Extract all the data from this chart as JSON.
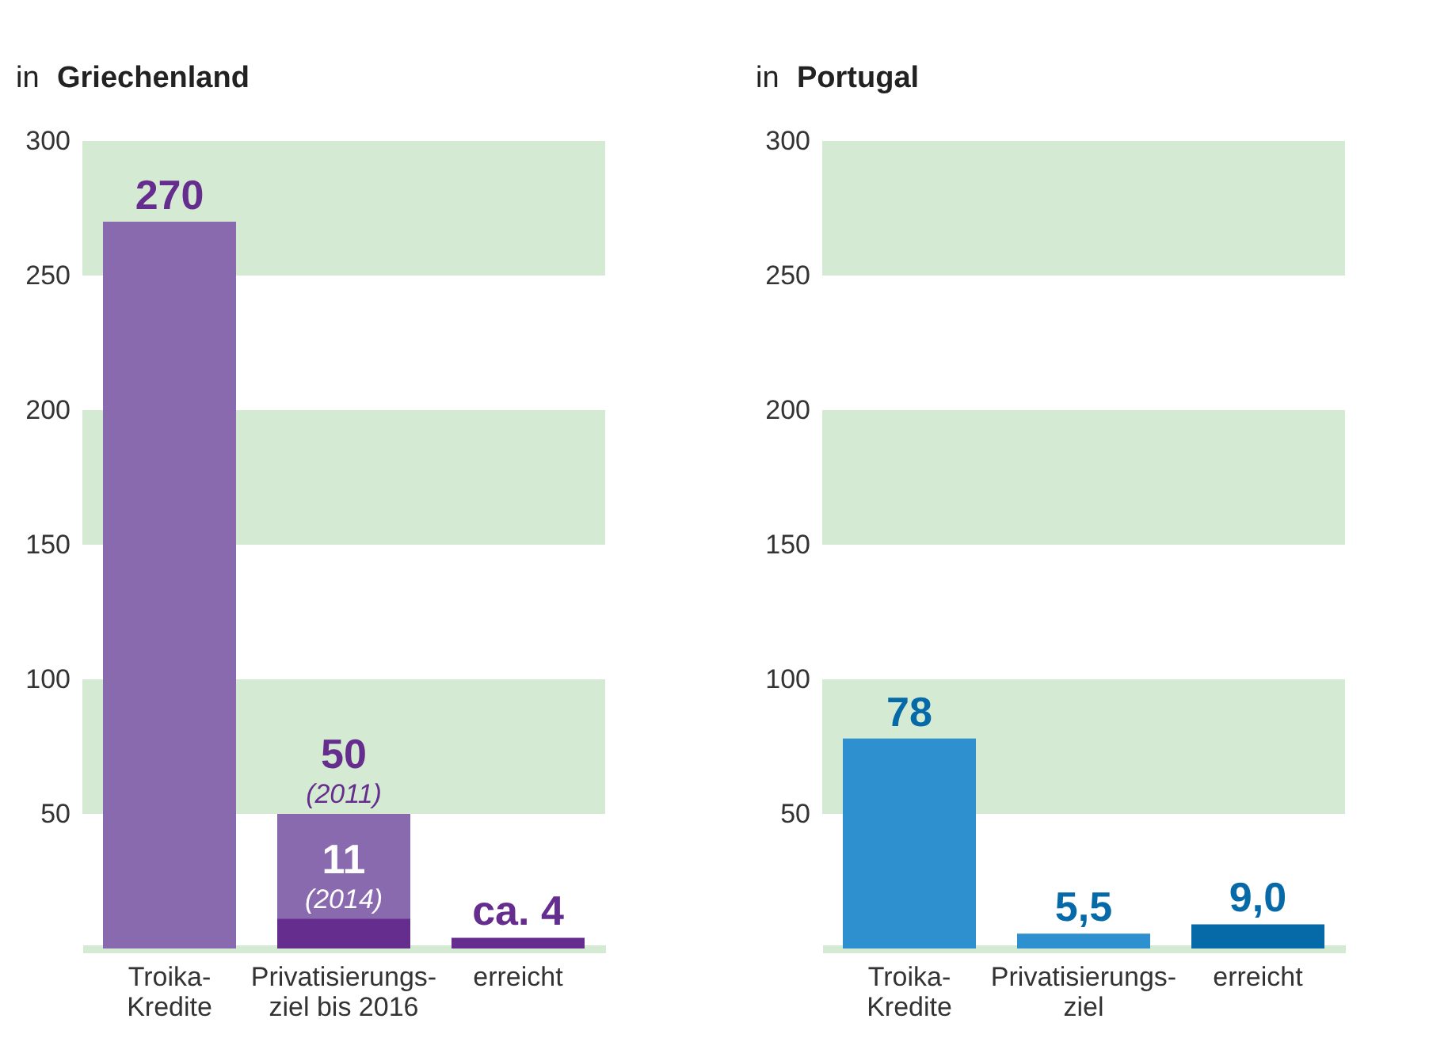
{
  "chart_data": [
    {
      "type": "bar",
      "title": "in Griechenland",
      "categories": [
        "Troika-\nKredite",
        "Privatisierungs-\nziel bis 2016",
        "erreicht"
      ],
      "series": [
        {
          "color": "#8a6aae",
          "values": [
            270,
            50,
            null
          ],
          "value_labels": [
            "270",
            "50\n(2011)",
            null
          ]
        },
        {
          "color": "#652d8e",
          "values": [
            null,
            11,
            4
          ],
          "value_labels": [
            null,
            "11\n(2014)",
            "ca. 4"
          ]
        }
      ],
      "ylim": [
        0,
        300
      ],
      "yticks": [
        50,
        100,
        150,
        200,
        250,
        300
      ],
      "bands": [
        {
          "axis": "y",
          "from": 50,
          "to": 100,
          "color": "#d5ead2"
        },
        {
          "axis": "y",
          "from": 150,
          "to": 200,
          "color": "#d5ead2"
        },
        {
          "axis": "y",
          "from": 250,
          "to": 300,
          "color": "#d5ead2"
        }
      ]
    },
    {
      "type": "bar",
      "title": "in Portugal",
      "categories": [
        "Troika-\nKredite",
        "Privatisierungs-\nziel",
        "erreicht"
      ],
      "values": [
        78,
        5.5,
        9.0
      ],
      "colors": [
        "#2f90d0",
        "#2f90d0",
        "#066aa8"
      ],
      "value_labels": [
        "78",
        "5,5",
        "9,0"
      ],
      "ylim": [
        0,
        300
      ],
      "yticks": [
        50,
        100,
        150,
        200,
        250,
        300
      ],
      "bands": [
        {
          "axis": "y",
          "from": 50,
          "to": 100,
          "color": "#d5ead2"
        },
        {
          "axis": "y",
          "from": 150,
          "to": 200,
          "color": "#d5ead2"
        },
        {
          "axis": "y",
          "from": 250,
          "to": 300,
          "color": "#d5ead2"
        }
      ]
    }
  ]
}
